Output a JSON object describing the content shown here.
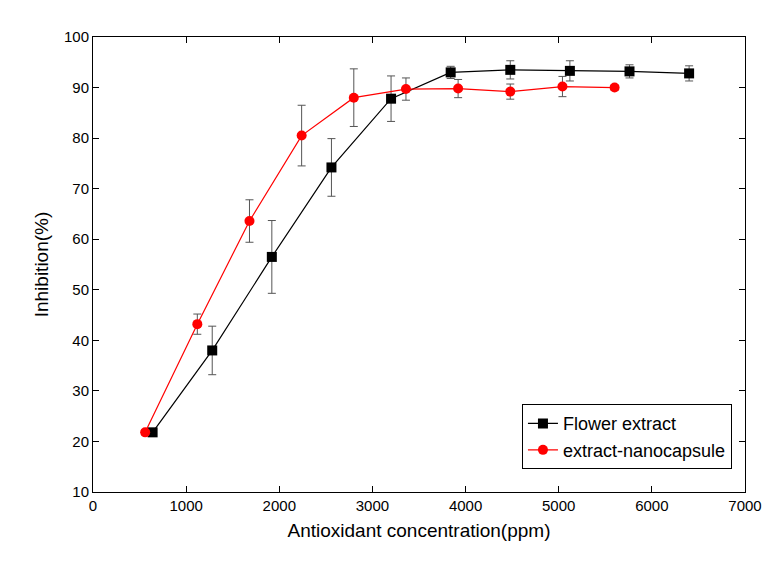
{
  "chart_data": {
    "type": "line",
    "x_label": "Antioxidant concentration(ppm)",
    "y_label": "Inhibition(%)",
    "xlim": [
      0,
      7000
    ],
    "xticks": [
      0,
      1000,
      2000,
      3000,
      4000,
      5000,
      6000,
      7000
    ],
    "ylim": [
      10,
      100
    ],
    "yticks": [
      10,
      20,
      30,
      40,
      50,
      60,
      70,
      80,
      90,
      100
    ],
    "grid": false,
    "legend": "lower right",
    "series": [
      {
        "name": "Flower extract",
        "color": "#000000",
        "marker": "square",
        "line_style": "solid",
        "x": [
          640,
          1280,
          1920,
          2560,
          3200,
          3840,
          4480,
          5120,
          5760,
          6400
        ],
        "values": [
          21.8,
          38.0,
          56.5,
          74.2,
          87.8,
          93.0,
          93.5,
          93.3,
          93.2,
          92.8
        ],
        "error": [
          0.5,
          4.8,
          7.2,
          5.7,
          4.5,
          1.2,
          1.8,
          2.0,
          1.3,
          1.5
        ]
      },
      {
        "name": "extract-nanocapsule",
        "color": "#ff0000",
        "marker": "circle",
        "line_style": "solid",
        "x": [
          560,
          1120,
          1680,
          2240,
          2800,
          3360,
          3920,
          4480,
          5040,
          5600
        ],
        "values": [
          21.8,
          43.2,
          63.6,
          80.5,
          88.0,
          89.7,
          89.8,
          89.2,
          90.2,
          90.0
        ],
        "error": [
          0.5,
          2.0,
          4.2,
          6.0,
          5.7,
          2.2,
          1.8,
          1.5,
          2.0,
          0.5
        ]
      }
    ]
  }
}
